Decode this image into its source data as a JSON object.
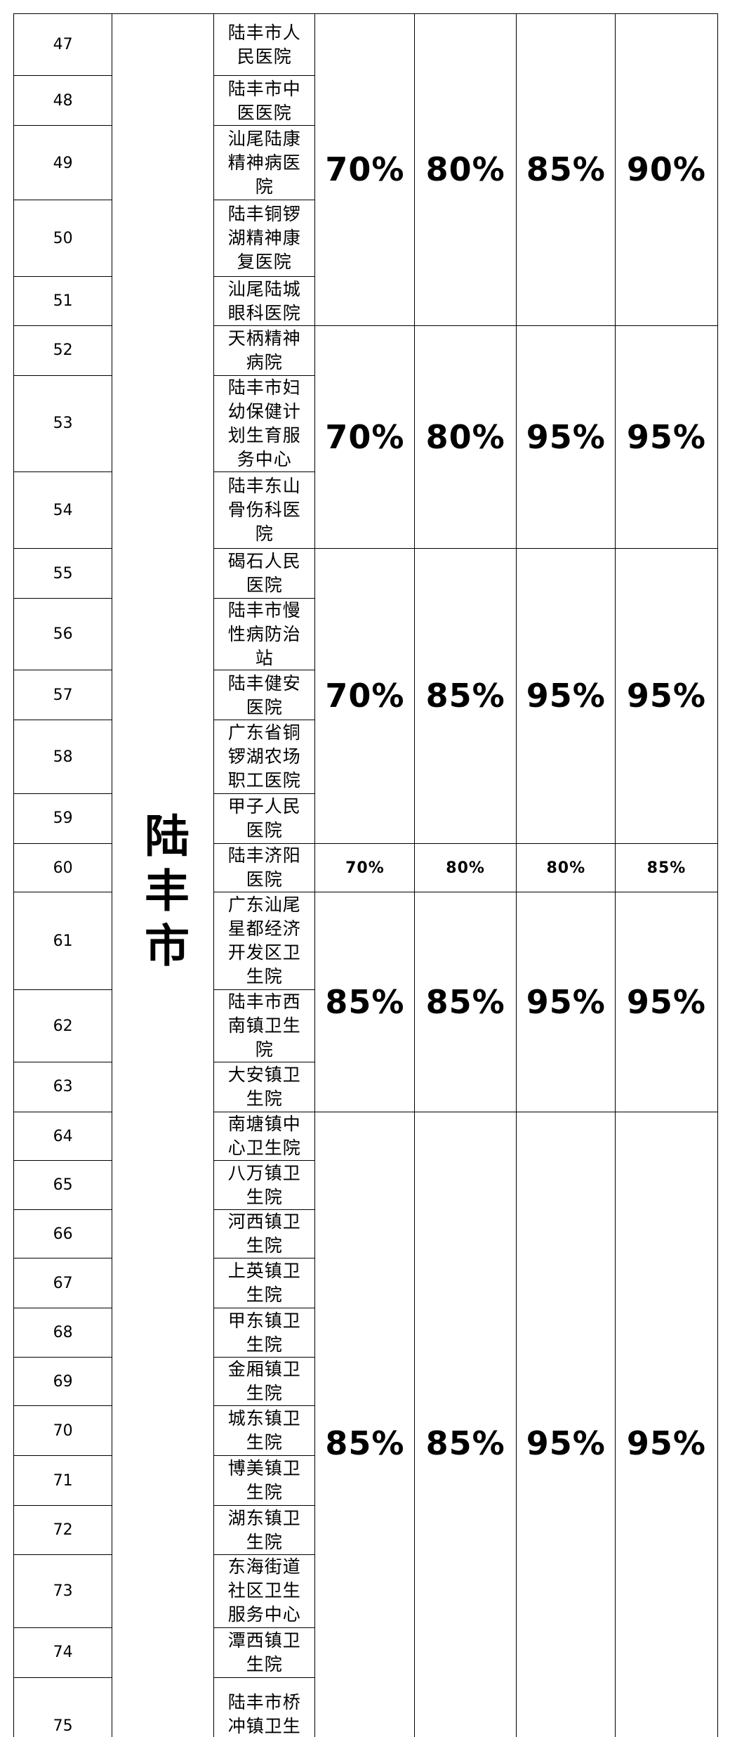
{
  "table": {
    "city": "陆丰市",
    "rows": [
      [
        "47",
        "陆丰市人民医院"
      ],
      [
        "48",
        "陆丰市中医医院"
      ],
      [
        "49",
        "汕尾陆康精神病医院"
      ],
      [
        "50",
        "陆丰铜锣湖精神康复医院"
      ],
      [
        "51",
        "汕尾陆城眼科医院"
      ],
      [
        "52",
        "天柄精神病院"
      ],
      [
        "53",
        "陆丰市妇幼保健计划生育服务中心"
      ],
      [
        "54",
        "陆丰东山骨伤科医院"
      ],
      [
        "55",
        "碣石人民医院"
      ],
      [
        "56",
        "陆丰市慢性病防治站"
      ],
      [
        "57",
        "陆丰健安医院"
      ],
      [
        "58",
        "广东省铜锣湖农场职工医院"
      ],
      [
        "59",
        "甲子人民医院"
      ],
      [
        "60",
        "陆丰济阳医院"
      ],
      [
        "61",
        "广东汕尾星都经济开发区卫生院"
      ],
      [
        "62",
        "陆丰市西南镇卫生院"
      ],
      [
        "63",
        "大安镇卫生院"
      ],
      [
        "64",
        "南塘镇中心卫生院"
      ],
      [
        "65",
        "八万镇卫生院"
      ],
      [
        "66",
        "河西镇卫生院"
      ],
      [
        "67",
        "上英镇卫生院"
      ],
      [
        "68",
        "甲东镇卫生院"
      ],
      [
        "69",
        "金厢镇卫生院"
      ],
      [
        "70",
        "城东镇卫生院"
      ],
      [
        "71",
        "博美镇卫生院"
      ],
      [
        "72",
        "湖东镇卫生院"
      ],
      [
        "73",
        "东海街道社区卫生服务中心"
      ],
      [
        "74",
        "潭西镇卫生院"
      ],
      [
        "75",
        "陆丰市桥冲镇卫生院"
      ]
    ],
    "groups": [
      [
        "70%",
        "80%",
        "85%",
        "90%"
      ],
      [
        "70%",
        "80%",
        "95%",
        "95%"
      ],
      [
        "70%",
        "85%",
        "95%",
        "95%"
      ],
      [
        "70%",
        "80%",
        "80%",
        "85%"
      ],
      [
        "85%",
        "85%",
        "95%",
        "95%"
      ],
      [
        "85%",
        "85%",
        "95%",
        "95%"
      ]
    ]
  }
}
